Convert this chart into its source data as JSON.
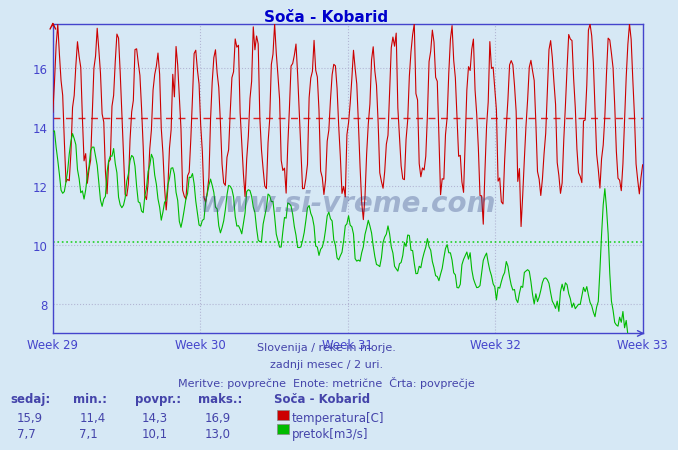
{
  "title": "Soča - Kobarid",
  "background_color": "#d6e8f5",
  "plot_bg_color": "#d6e8f5",
  "x_labels": [
    "Week 29",
    "Week 30",
    "Week 31",
    "Week 32",
    "Week 33"
  ],
  "y_ticks": [
    8,
    10,
    12,
    14,
    16
  ],
  "ylim": [
    7.0,
    17.5
  ],
  "temp_avg": 14.3,
  "temp_min": 11.4,
  "temp_max": 16.9,
  "temp_sedaj": 15.9,
  "flow_avg": 10.1,
  "flow_min": 7.1,
  "flow_max": 13.0,
  "flow_sedaj": 7.7,
  "temp_color": "#cc0000",
  "flow_color": "#00bb00",
  "avg_temp_line_color": "#dd0000",
  "avg_flow_line_color": "#00cc00",
  "axis_color": "#4444cc",
  "grid_color": "#aaaacc",
  "text_color": "#4444aa",
  "title_color": "#0000cc",
  "footnote1": "Slovenija / reke in morje.",
  "footnote2": "zadnji mesec / 2 uri.",
  "footnote3": "Meritve: povprečne  Enote: metrične  Črta: povprečje",
  "legend_title": "Soča - Kobarid",
  "label_temp": "temperatura[C]",
  "label_flow": "pretok[m3/s]",
  "n_points": 360
}
